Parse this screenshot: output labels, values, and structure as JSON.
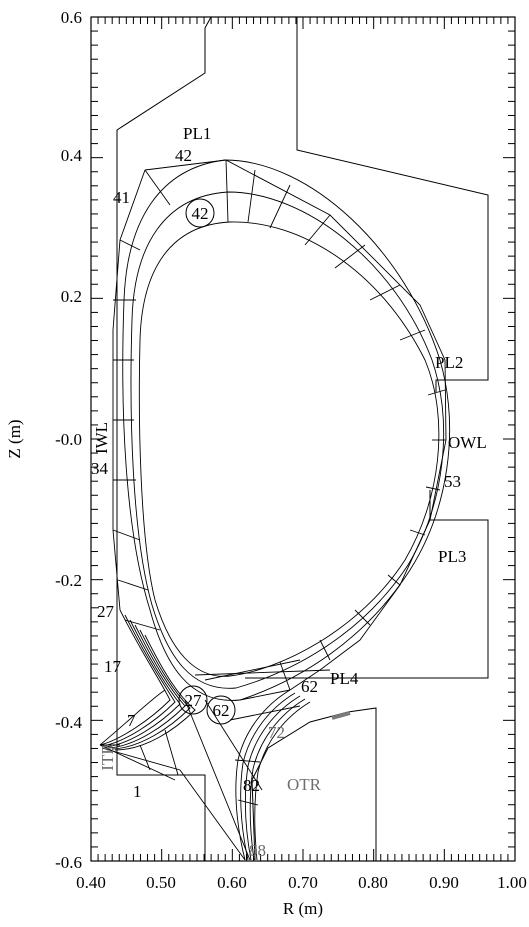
{
  "axes": {
    "xlabel": "R (m)",
    "ylabel": "Z (m)",
    "x_ticks": [
      "0.40",
      "0.50",
      "0.60",
      "0.70",
      "0.80",
      "0.90",
      "1.00"
    ],
    "y_ticks": [
      "0.6",
      "0.4",
      "0.2",
      "-0.0",
      "-0.2",
      "-0.4",
      "-0.6"
    ],
    "xlim": [
      0.4,
      1.0
    ],
    "ylim": [
      -0.6,
      0.6
    ]
  },
  "region_labels": {
    "pl1": "PL1",
    "pl2": "PL2",
    "pl3": "PL3",
    "pl4": "PL4",
    "iwl": "IWL",
    "owl": "OWL",
    "itr": "ITR",
    "otr": "OTR"
  },
  "cell_numbers": {
    "n42_top": "42",
    "n41": "41",
    "n42_circle": "42",
    "n34": "34",
    "n53": "53",
    "n27_left": "27",
    "n17": "17",
    "n27_circle": "27",
    "n62_circle": "62",
    "n62": "62",
    "n72": "72",
    "n7": "7",
    "n1": "1",
    "n82": "82",
    "n88": "88"
  },
  "colors": {
    "line": "#000000",
    "grey_label": "#6e6e6e"
  }
}
